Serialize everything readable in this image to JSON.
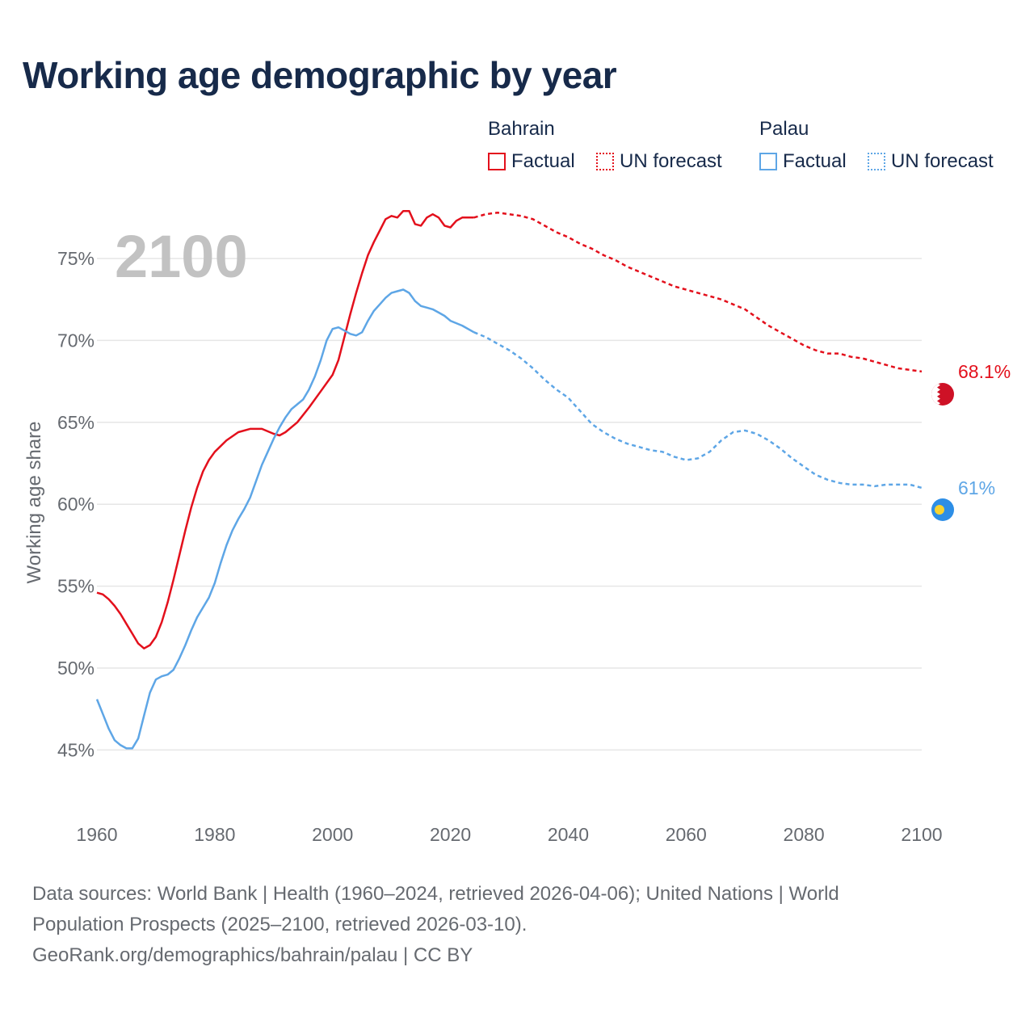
{
  "title": "Working age demographic by year",
  "legend": {
    "groups": [
      {
        "country": "Bahrain",
        "factual": "Factual",
        "forecast": "UN forecast",
        "color": "#e3101c"
      },
      {
        "country": "Palau",
        "factual": "Factual",
        "forecast": "UN forecast",
        "color": "#5ea6e6"
      }
    ]
  },
  "footer": {
    "line1": "Data sources: World Bank | Health (1960–2024, retrieved 2026-04-06); United Nations | World",
    "line2": "Population Prospects (2025–2100, retrieved 2026-03-10).",
    "line3": "GeoRank.org/demographics/bahrain/palau | CC BY"
  },
  "chart_data": {
    "type": "line",
    "title": "Working age demographic by year",
    "year_overlay": "2100",
    "xlabel": "",
    "ylabel": "Working age share",
    "xlim": [
      1960,
      2100
    ],
    "ylim": [
      43,
      78.5
    ],
    "x_ticks": [
      1960,
      1980,
      2000,
      2020,
      2040,
      2060,
      2080,
      2100
    ],
    "x_tick_labels": [
      "1960",
      "1980",
      "2000",
      "2020",
      "2040",
      "2060",
      "2080",
      "2100"
    ],
    "y_ticks": [
      45,
      50,
      55,
      60,
      65,
      70,
      75
    ],
    "y_tick_labels": [
      "45%",
      "50%",
      "55%",
      "60%",
      "65%",
      "70%",
      "75%"
    ],
    "grid": true,
    "factual_range": [
      1960,
      2024
    ],
    "forecast_range": [
      2024,
      2100
    ],
    "series": [
      {
        "name": "Bahrain",
        "color": "#e3101c",
        "end_label": "68.1%",
        "points": [
          [
            1960,
            54.6
          ],
          [
            1961,
            54.5
          ],
          [
            1962,
            54.2
          ],
          [
            1963,
            53.8
          ],
          [
            1964,
            53.3
          ],
          [
            1965,
            52.7
          ],
          [
            1966,
            52.1
          ],
          [
            1967,
            51.5
          ],
          [
            1968,
            51.2
          ],
          [
            1969,
            51.4
          ],
          [
            1970,
            51.9
          ],
          [
            1971,
            52.8
          ],
          [
            1972,
            54.0
          ],
          [
            1973,
            55.4
          ],
          [
            1974,
            56.9
          ],
          [
            1975,
            58.4
          ],
          [
            1976,
            59.8
          ],
          [
            1977,
            61.0
          ],
          [
            1978,
            62.0
          ],
          [
            1979,
            62.7
          ],
          [
            1980,
            63.2
          ],
          [
            1982,
            63.9
          ],
          [
            1984,
            64.4
          ],
          [
            1986,
            64.6
          ],
          [
            1988,
            64.6
          ],
          [
            1990,
            64.3
          ],
          [
            1991,
            64.2
          ],
          [
            1992,
            64.4
          ],
          [
            1994,
            65.0
          ],
          [
            1996,
            65.9
          ],
          [
            1998,
            66.9
          ],
          [
            2000,
            67.9
          ],
          [
            2001,
            68.8
          ],
          [
            2002,
            70.2
          ],
          [
            2003,
            71.6
          ],
          [
            2004,
            72.9
          ],
          [
            2005,
            74.1
          ],
          [
            2006,
            75.2
          ],
          [
            2007,
            76.0
          ],
          [
            2008,
            76.7
          ],
          [
            2009,
            77.4
          ],
          [
            2010,
            77.6
          ],
          [
            2011,
            77.5
          ],
          [
            2012,
            77.9
          ],
          [
            2013,
            77.9
          ],
          [
            2014,
            77.1
          ],
          [
            2015,
            77.0
          ],
          [
            2016,
            77.5
          ],
          [
            2017,
            77.7
          ],
          [
            2018,
            77.5
          ],
          [
            2019,
            77.0
          ],
          [
            2020,
            76.9
          ],
          [
            2021,
            77.3
          ],
          [
            2022,
            77.5
          ],
          [
            2024,
            77.5
          ],
          [
            2026,
            77.7
          ],
          [
            2028,
            77.8
          ],
          [
            2030,
            77.7
          ],
          [
            2032,
            77.6
          ],
          [
            2034,
            77.4
          ],
          [
            2036,
            77.0
          ],
          [
            2038,
            76.6
          ],
          [
            2040,
            76.3
          ],
          [
            2042,
            75.9
          ],
          [
            2044,
            75.6
          ],
          [
            2046,
            75.2
          ],
          [
            2048,
            74.9
          ],
          [
            2050,
            74.5
          ],
          [
            2052,
            74.2
          ],
          [
            2054,
            73.9
          ],
          [
            2056,
            73.6
          ],
          [
            2058,
            73.3
          ],
          [
            2060,
            73.1
          ],
          [
            2062,
            72.9
          ],
          [
            2064,
            72.7
          ],
          [
            2066,
            72.5
          ],
          [
            2068,
            72.2
          ],
          [
            2070,
            71.9
          ],
          [
            2072,
            71.4
          ],
          [
            2074,
            70.9
          ],
          [
            2076,
            70.5
          ],
          [
            2078,
            70.1
          ],
          [
            2080,
            69.7
          ],
          [
            2082,
            69.4
          ],
          [
            2084,
            69.2
          ],
          [
            2086,
            69.2
          ],
          [
            2088,
            69.0
          ],
          [
            2090,
            68.9
          ],
          [
            2092,
            68.7
          ],
          [
            2094,
            68.5
          ],
          [
            2096,
            68.3
          ],
          [
            2098,
            68.2
          ],
          [
            2100,
            68.1
          ]
        ]
      },
      {
        "name": "Palau",
        "color": "#5ea6e6",
        "end_label": "61%",
        "points": [
          [
            1960,
            48.1
          ],
          [
            1961,
            47.2
          ],
          [
            1962,
            46.3
          ],
          [
            1963,
            45.6
          ],
          [
            1964,
            45.3
          ],
          [
            1965,
            45.1
          ],
          [
            1966,
            45.1
          ],
          [
            1967,
            45.7
          ],
          [
            1968,
            47.1
          ],
          [
            1969,
            48.5
          ],
          [
            1970,
            49.3
          ],
          [
            1971,
            49.5
          ],
          [
            1972,
            49.6
          ],
          [
            1973,
            49.9
          ],
          [
            1974,
            50.6
          ],
          [
            1975,
            51.4
          ],
          [
            1976,
            52.3
          ],
          [
            1977,
            53.1
          ],
          [
            1978,
            53.7
          ],
          [
            1979,
            54.3
          ],
          [
            1980,
            55.2
          ],
          [
            1981,
            56.4
          ],
          [
            1982,
            57.5
          ],
          [
            1983,
            58.4
          ],
          [
            1984,
            59.1
          ],
          [
            1985,
            59.7
          ],
          [
            1986,
            60.4
          ],
          [
            1987,
            61.4
          ],
          [
            1988,
            62.4
          ],
          [
            1989,
            63.2
          ],
          [
            1990,
            64.0
          ],
          [
            1991,
            64.7
          ],
          [
            1992,
            65.3
          ],
          [
            1993,
            65.8
          ],
          [
            1994,
            66.1
          ],
          [
            1995,
            66.4
          ],
          [
            1996,
            67.0
          ],
          [
            1997,
            67.8
          ],
          [
            1998,
            68.8
          ],
          [
            1999,
            70.0
          ],
          [
            2000,
            70.7
          ],
          [
            2001,
            70.8
          ],
          [
            2002,
            70.6
          ],
          [
            2003,
            70.4
          ],
          [
            2004,
            70.3
          ],
          [
            2005,
            70.5
          ],
          [
            2006,
            71.2
          ],
          [
            2007,
            71.8
          ],
          [
            2008,
            72.2
          ],
          [
            2009,
            72.6
          ],
          [
            2010,
            72.9
          ],
          [
            2011,
            73.0
          ],
          [
            2012,
            73.1
          ],
          [
            2013,
            72.9
          ],
          [
            2014,
            72.4
          ],
          [
            2015,
            72.1
          ],
          [
            2016,
            72.0
          ],
          [
            2017,
            71.9
          ],
          [
            2018,
            71.7
          ],
          [
            2019,
            71.5
          ],
          [
            2020,
            71.2
          ],
          [
            2022,
            70.9
          ],
          [
            2024,
            70.5
          ],
          [
            2026,
            70.2
          ],
          [
            2028,
            69.8
          ],
          [
            2030,
            69.4
          ],
          [
            2032,
            68.9
          ],
          [
            2034,
            68.3
          ],
          [
            2036,
            67.6
          ],
          [
            2038,
            67.0
          ],
          [
            2040,
            66.5
          ],
          [
            2042,
            65.7
          ],
          [
            2044,
            64.9
          ],
          [
            2046,
            64.4
          ],
          [
            2048,
            64.0
          ],
          [
            2050,
            63.7
          ],
          [
            2052,
            63.5
          ],
          [
            2054,
            63.3
          ],
          [
            2056,
            63.2
          ],
          [
            2058,
            62.9
          ],
          [
            2060,
            62.7
          ],
          [
            2062,
            62.8
          ],
          [
            2064,
            63.2
          ],
          [
            2066,
            63.9
          ],
          [
            2068,
            64.4
          ],
          [
            2070,
            64.5
          ],
          [
            2072,
            64.3
          ],
          [
            2074,
            63.9
          ],
          [
            2076,
            63.4
          ],
          [
            2078,
            62.8
          ],
          [
            2080,
            62.3
          ],
          [
            2082,
            61.8
          ],
          [
            2084,
            61.5
          ],
          [
            2086,
            61.3
          ],
          [
            2088,
            61.2
          ],
          [
            2090,
            61.2
          ],
          [
            2092,
            61.1
          ],
          [
            2094,
            61.2
          ],
          [
            2096,
            61.2
          ],
          [
            2098,
            61.2
          ],
          [
            2100,
            61.0
          ]
        ]
      }
    ]
  }
}
